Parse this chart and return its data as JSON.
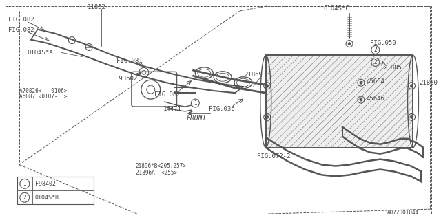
{
  "bg_color": "#ffffff",
  "line_color": "#555555",
  "text_color": "#444444",
  "figsize": [
    6.4,
    3.2
  ],
  "dpi": 100,
  "watermark": "A072001044",
  "labels": {
    "FIG082_top": "FIG.082",
    "FIG082_mid": "FIG.082",
    "FIG082_bot": "FIG.082",
    "11852": "11852",
    "0104S_A": "0104S*A",
    "0104S_C": "0104S*C",
    "FIG036": "FIG.036",
    "21869": "21869",
    "45664": "45664",
    "21820": "21820",
    "45646": "45646",
    "A70826": "A70826<  -0106>",
    "A6087": "A6087 <0107-  >",
    "14471": "14471",
    "F93602": "F93602",
    "FIG081": "FIG.081",
    "FIG072_2": "FIG.072-2",
    "21896B": "21896*B<205,257>",
    "21896A": "21896A  <255>",
    "21885": "21885",
    "FIG050": "FIG.050",
    "FRONT": "FRONT",
    "legend1": "F98402",
    "legend2": "0104S*B"
  }
}
